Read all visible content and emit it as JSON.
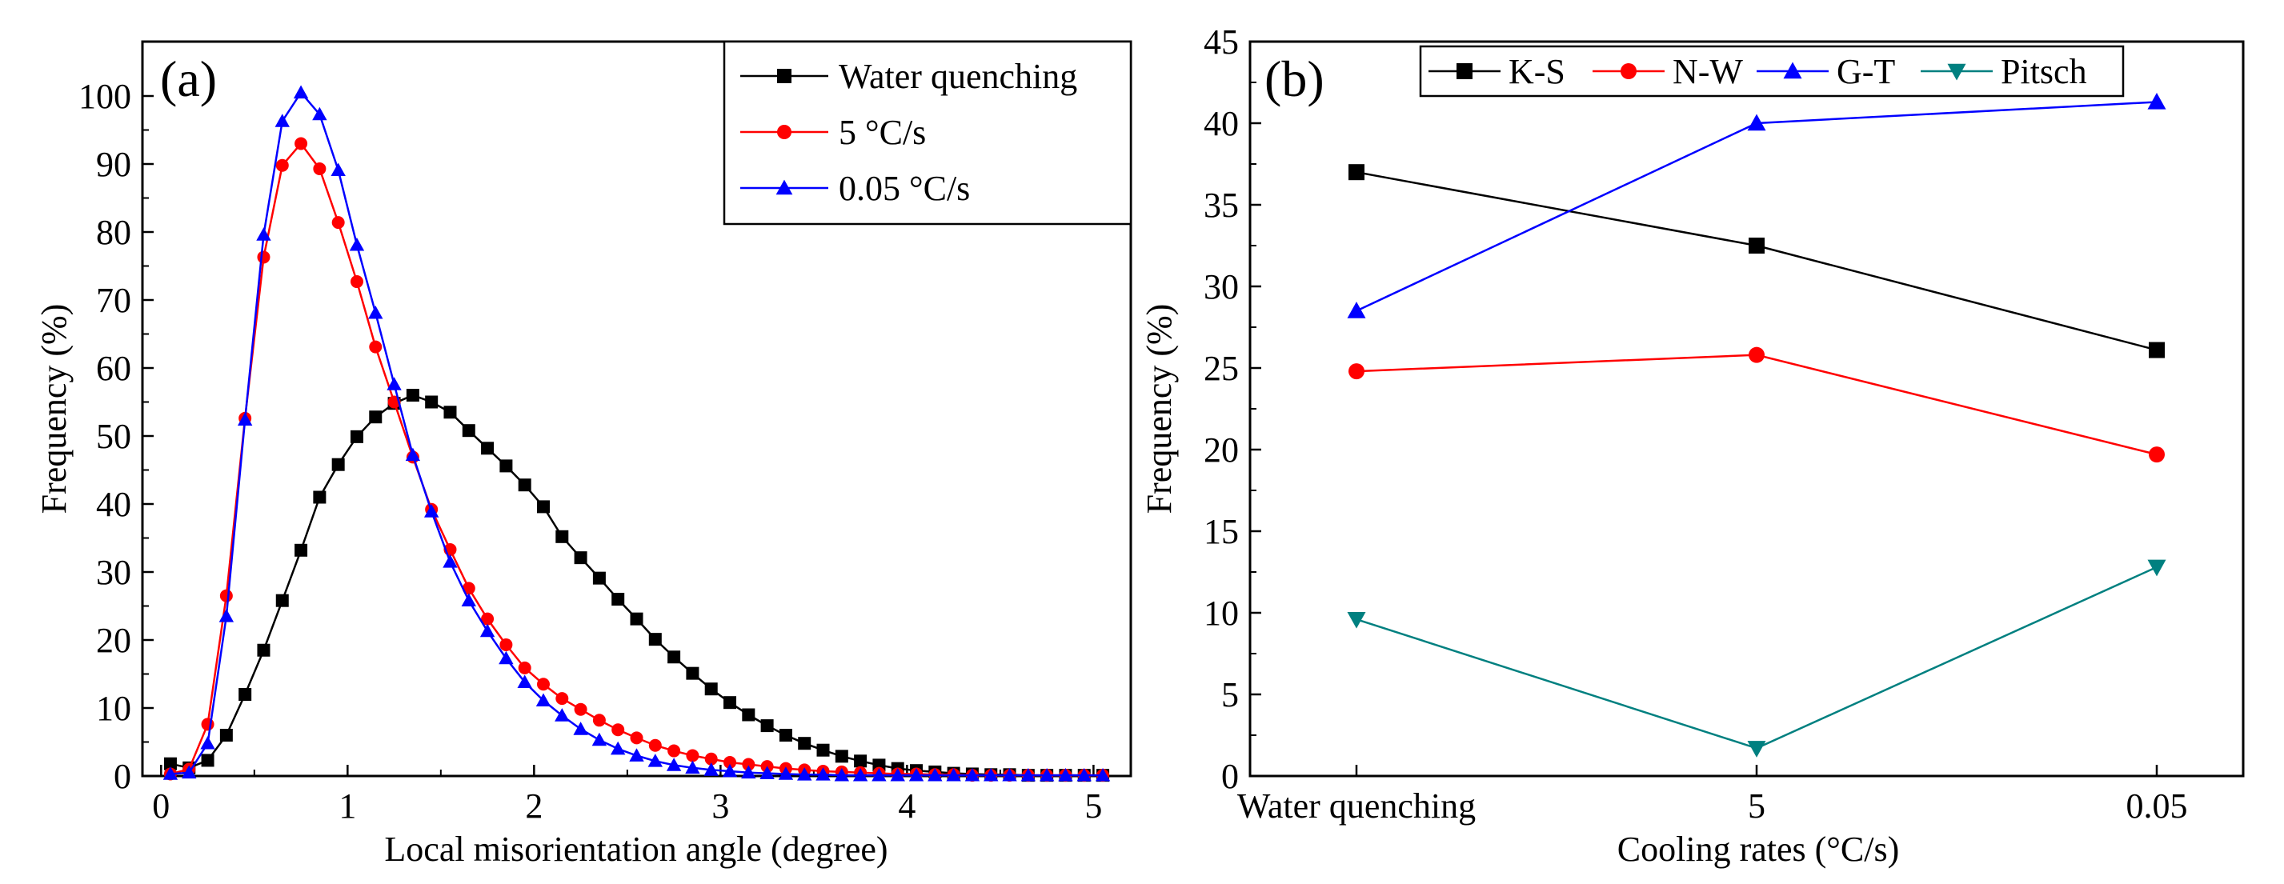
{
  "chart_data": [
    {
      "panel_label": "(a)",
      "type": "line",
      "title": "",
      "xlabel": "Local misorientation angle (degree)",
      "ylabel": "Frequency (%)",
      "xlim": [
        -0.1,
        5.2
      ],
      "ylim": [
        0,
        108
      ],
      "xticks": [
        0,
        1,
        2,
        3,
        4,
        5
      ],
      "yticks": [
        0,
        10,
        20,
        30,
        40,
        50,
        60,
        70,
        80,
        90,
        100
      ],
      "grid": false,
      "legend_position": "top-right",
      "x": [
        0.05,
        0.15,
        0.25,
        0.35,
        0.45,
        0.55,
        0.65,
        0.75,
        0.85,
        0.95,
        1.05,
        1.15,
        1.25,
        1.35,
        1.45,
        1.55,
        1.65,
        1.75,
        1.85,
        1.95,
        2.05,
        2.15,
        2.25,
        2.35,
        2.45,
        2.55,
        2.65,
        2.75,
        2.85,
        2.95,
        3.05,
        3.15,
        3.25,
        3.35,
        3.45,
        3.55,
        3.65,
        3.75,
        3.85,
        3.95,
        4.05,
        4.15,
        4.25,
        4.35,
        4.45,
        4.55,
        4.65,
        4.75,
        4.85,
        4.95,
        5.05
      ],
      "series": [
        {
          "name": "Water quenching",
          "color": "#000000",
          "marker": "square",
          "values": [
            1.8,
            1.2,
            2.3,
            6.0,
            12.0,
            18.5,
            25.8,
            33.2,
            41.0,
            45.8,
            49.9,
            52.8,
            54.8,
            56.0,
            55.0,
            53.5,
            50.8,
            48.2,
            45.6,
            42.8,
            39.6,
            35.2,
            32.1,
            29.1,
            26.0,
            23.1,
            20.1,
            17.5,
            15.1,
            12.8,
            10.8,
            9.0,
            7.4,
            6.0,
            4.8,
            3.8,
            2.9,
            2.2,
            1.6,
            1.1,
            0.8,
            0.6,
            0.4,
            0.3,
            0.2,
            0.2,
            0.1,
            0.1,
            0.1,
            0.1,
            0.1
          ]
        },
        {
          "name": "5 °C/s",
          "color": "#ff0000",
          "marker": "circle",
          "values": [
            0.3,
            1.0,
            7.6,
            26.5,
            52.6,
            76.3,
            89.8,
            93.0,
            89.3,
            81.4,
            72.7,
            63.1,
            55.0,
            46.9,
            39.2,
            33.3,
            27.6,
            23.1,
            19.3,
            15.9,
            13.5,
            11.4,
            9.8,
            8.2,
            6.8,
            5.6,
            4.5,
            3.7,
            3.0,
            2.5,
            2.0,
            1.7,
            1.4,
            1.1,
            0.9,
            0.7,
            0.6,
            0.5,
            0.4,
            0.3,
            0.3,
            0.2,
            0.2,
            0.1,
            0.1,
            0.1,
            0.1,
            0.1,
            0.1,
            0.1,
            0.1
          ]
        },
        {
          "name": "0.05 °C/s",
          "color": "#0000ff",
          "marker": "triangle-up",
          "values": [
            0.3,
            0.5,
            4.8,
            23.5,
            52.4,
            79.6,
            96.3,
            100.5,
            97.3,
            89.1,
            78.1,
            68.1,
            57.6,
            47.2,
            38.9,
            31.5,
            25.8,
            21.3,
            17.3,
            13.8,
            11.1,
            8.9,
            6.9,
            5.3,
            4.0,
            3.0,
            2.2,
            1.6,
            1.2,
            0.9,
            0.7,
            0.5,
            0.4,
            0.3,
            0.2,
            0.2,
            0.1,
            0.1,
            0.1,
            0.1,
            0.1,
            0.1,
            0.1,
            0.1,
            0.1,
            0.1,
            0.1,
            0.1,
            0.1,
            0.1,
            0.1
          ]
        }
      ]
    },
    {
      "panel_label": "(b)",
      "type": "line",
      "title": "",
      "xlabel": "Cooling rates (°C/s)",
      "ylabel": "Frequency (%)",
      "categories": [
        "Water quenching",
        "5",
        "0.05"
      ],
      "ylim": [
        0,
        45
      ],
      "yticks": [
        0,
        5,
        10,
        15,
        20,
        25,
        30,
        35,
        40,
        45
      ],
      "grid": false,
      "legend_position": "top",
      "series": [
        {
          "name": "K-S",
          "color": "#000000",
          "marker": "square",
          "values": [
            37.0,
            32.5,
            26.1
          ]
        },
        {
          "name": "N-W",
          "color": "#ff0000",
          "marker": "circle",
          "values": [
            24.8,
            25.8,
            19.7
          ]
        },
        {
          "name": "G-T",
          "color": "#0000ff",
          "marker": "triangle-up",
          "values": [
            28.5,
            40.0,
            41.3
          ]
        },
        {
          "name": "Pitsch",
          "color": "#008080",
          "marker": "triangle-down",
          "values": [
            9.6,
            1.7,
            12.8
          ]
        }
      ]
    }
  ]
}
